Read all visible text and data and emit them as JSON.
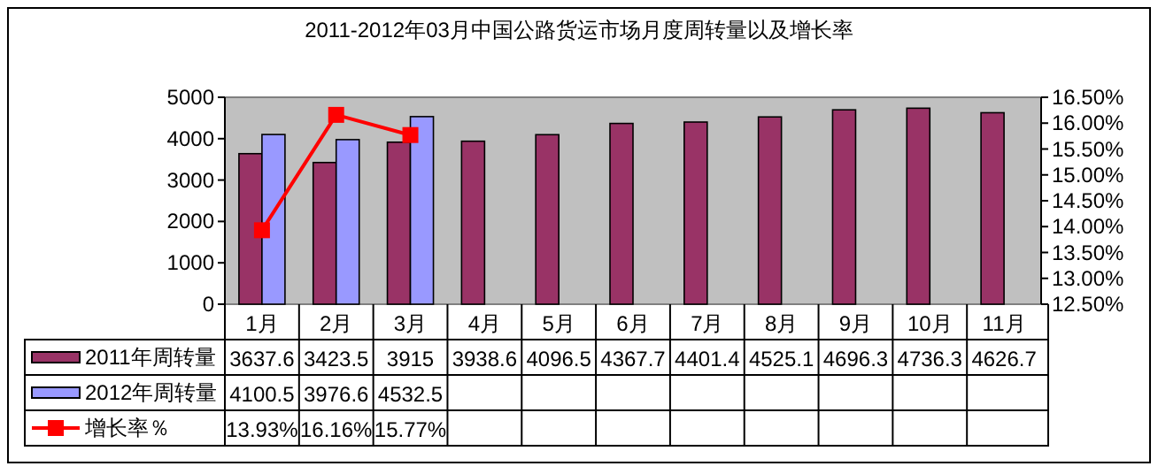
{
  "chart_data": {
    "type": "bar",
    "title": "2011-2012年03月中国公路货运市场月度周转量以及增长率",
    "categories": [
      "1月",
      "2月",
      "3月",
      "4月",
      "5月",
      "6月",
      "7月",
      "8月",
      "9月",
      "10月",
      "11月"
    ],
    "series": [
      {
        "name": "2011年周转量",
        "color": "#993366",
        "values": [
          3637.6,
          3423.5,
          3915,
          3938.6,
          4096.5,
          4367.7,
          4401.4,
          4525.1,
          4696.3,
          4736.3,
          4626.7
        ]
      },
      {
        "name": "2012年周转量",
        "color": "#9999ff",
        "values": [
          4100.5,
          3976.6,
          4532.5,
          null,
          null,
          null,
          null,
          null,
          null,
          null,
          null
        ]
      },
      {
        "name": "增长率％",
        "type": "line",
        "axis": "y2",
        "color": "#ff0000",
        "marker": "square",
        "line_style": "solid",
        "values": [
          13.93,
          16.16,
          15.77,
          null,
          null,
          null,
          null,
          null,
          null,
          null,
          null
        ],
        "value_labels": [
          "13.93%",
          "16.16%",
          "15.77%",
          null,
          null,
          null,
          null,
          null,
          null,
          null,
          null
        ]
      }
    ],
    "ylim": [
      0,
      5000
    ],
    "yticks": [
      0,
      1000,
      2000,
      3000,
      4000,
      5000
    ],
    "y2lim": [
      12.5,
      16.5
    ],
    "y2ticks": [
      {
        "value": 12.5,
        "label": "12.50%"
      },
      {
        "value": 13,
        "label": "13.00%"
      },
      {
        "value": 13.5,
        "label": "13.50%"
      },
      {
        "value": 14,
        "label": "14.00%"
      },
      {
        "value": 14.5,
        "label": "14.50%"
      },
      {
        "value": 15,
        "label": "15.00%"
      },
      {
        "value": 15.5,
        "label": "15.50%"
      },
      {
        "value": 16,
        "label": "16.00%"
      },
      {
        "value": 16.5,
        "label": "16.50%"
      }
    ],
    "data_labels": true,
    "legend": "bottom left"
  }
}
